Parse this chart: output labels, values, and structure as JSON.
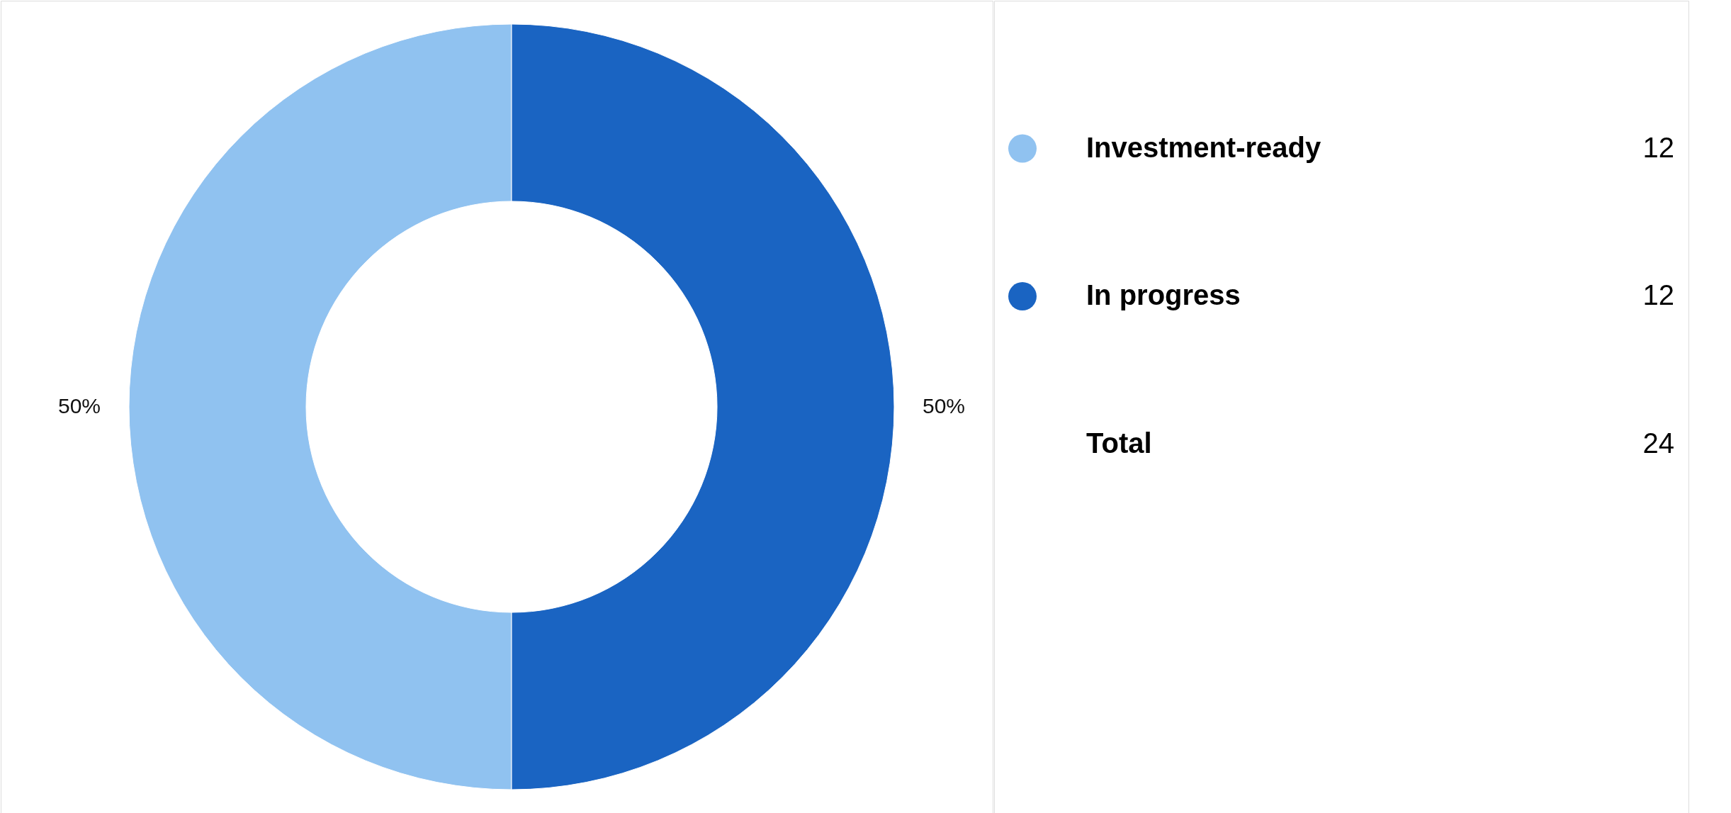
{
  "chart_data": {
    "type": "donut",
    "categories": [
      "Investment-ready",
      "In progress"
    ],
    "values": [
      50,
      50
    ],
    "colors": [
      "#90c2f0",
      "#1a64c2"
    ],
    "value_labels": [
      "50%",
      "50%"
    ],
    "legend": "right",
    "annotations": [
      "12",
      "12",
      "Total"
    ],
    "totals": [
      "24"
    ]
  }
}
